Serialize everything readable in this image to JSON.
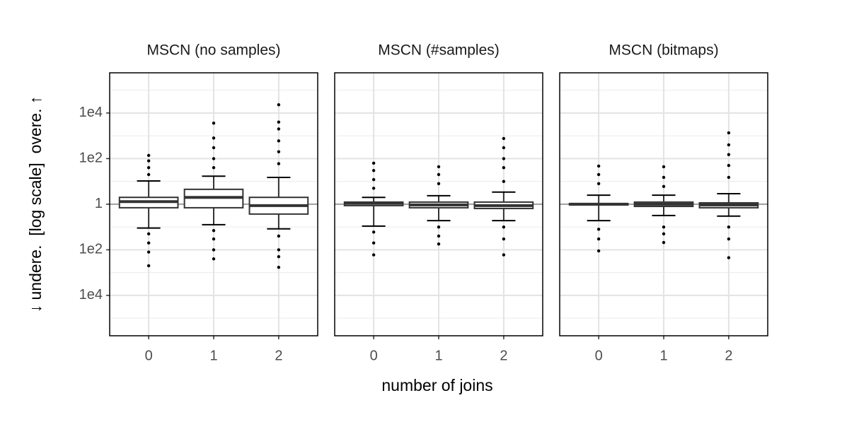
{
  "chart_data": [
    {
      "type": "box",
      "title": "MSCN (no samples)",
      "ylabel": "↓ undere.  [log scale]  overe. ↑",
      "categories": [
        "0",
        "1",
        "2"
      ],
      "log_scale": true,
      "grid": true,
      "hline": 1,
      "ylim": [
        1.7e-06,
        580000
      ],
      "yticks": [
        {
          "value": 10000,
          "label": "1e4"
        },
        {
          "value": 100,
          "label": "1e2"
        },
        1,
        {
          "value": 0.01,
          "label": "1e2"
        },
        {
          "value": 0.0001,
          "label": "1e4"
        }
      ],
      "minor_yticks": [
        100000,
        1000,
        10,
        0.1,
        0.001,
        1e-05
      ],
      "color": "#333333",
      "boxes": [
        {
          "q1": 0.7,
          "median": 1.3,
          "q3": 2.0,
          "whisker_low": 0.09,
          "whisker_high": 10.5,
          "outliers": [
            138,
            80,
            40,
            20,
            0.05,
            0.02,
            0.008,
            0.002
          ]
        },
        {
          "q1": 0.7,
          "median": 2.0,
          "q3": 4.5,
          "whisker_low": 0.126,
          "whisker_high": 17,
          "outliers": [
            3600,
            800,
            300,
            100,
            40,
            0.07,
            0.03,
            0.01,
            0.004
          ]
        },
        {
          "q1": 0.37,
          "median": 0.87,
          "q3": 2.0,
          "whisker_low": 0.083,
          "whisker_high": 15,
          "outliers": [
            23000,
            4000,
            2000,
            600,
            200,
            60,
            0.04,
            0.01,
            0.005,
            0.0017
          ]
        }
      ]
    },
    {
      "type": "box",
      "title": "MSCN (#samples)",
      "xlabel": "number of joins",
      "categories": [
        "0",
        "1",
        "2"
      ],
      "log_scale": true,
      "grid": true,
      "hline": 1,
      "ylim": [
        1.7e-06,
        580000
      ],
      "yticks": [
        {
          "value": 10000,
          "label": "1e4"
        },
        {
          "value": 100,
          "label": "1e2"
        },
        1,
        {
          "value": 0.01,
          "label": "1e2"
        },
        {
          "value": 0.0001,
          "label": "1e4"
        }
      ],
      "minor_yticks": [
        100000,
        1000,
        10,
        0.1,
        0.001,
        1e-05
      ],
      "color": "#333333",
      "boxes": [
        {
          "q1": 0.87,
          "median": 1.1,
          "q3": 1.24,
          "whisker_low": 0.11,
          "whisker_high": 2.0,
          "outliers": [
            63,
            30,
            12,
            5,
            0.06,
            0.02,
            0.006
          ]
        },
        {
          "q1": 0.7,
          "median": 0.93,
          "q3": 1.24,
          "whisker_low": 0.19,
          "whisker_high": 2.35,
          "outliers": [
            44,
            20,
            8,
            0.1,
            0.04,
            0.018
          ]
        },
        {
          "q1": 0.65,
          "median": 0.87,
          "q3": 1.24,
          "whisker_low": 0.19,
          "whisker_high": 3.4,
          "outliers": [
            760,
            300,
            100,
            40,
            10,
            0.1,
            0.03,
            0.006
          ]
        }
      ]
    },
    {
      "type": "box",
      "title": "MSCN (bitmaps)",
      "categories": [
        "0",
        "1",
        "2"
      ],
      "log_scale": true,
      "grid": true,
      "hline": 1,
      "ylim": [
        1.7e-06,
        580000
      ],
      "yticks": [
        {
          "value": 10000,
          "label": "1e4"
        },
        {
          "value": 100,
          "label": "1e2"
        },
        1,
        {
          "value": 0.01,
          "label": "1e2"
        },
        {
          "value": 0.0001,
          "label": "1e4"
        }
      ],
      "minor_yticks": [
        100000,
        1000,
        10,
        0.1,
        0.001,
        1e-05
      ],
      "color": "#333333",
      "boxes": [
        {
          "q1": 0.93,
          "median": 1.0,
          "q3": 1.07,
          "whisker_low": 0.19,
          "whisker_high": 2.5,
          "outliers": [
            47,
            20,
            8,
            0.08,
            0.03,
            0.009
          ]
        },
        {
          "q1": 0.8,
          "median": 1.0,
          "q3": 1.24,
          "whisker_low": 0.32,
          "whisker_high": 2.5,
          "outliers": [
            44,
            15,
            6,
            0.1,
            0.05,
            0.021
          ]
        },
        {
          "q1": 0.7,
          "median": 0.93,
          "q3": 1.15,
          "whisker_low": 0.3,
          "whisker_high": 2.9,
          "outliers": [
            1350,
            400,
            150,
            50,
            15,
            0.1,
            0.03,
            0.0045
          ]
        }
      ]
    }
  ]
}
